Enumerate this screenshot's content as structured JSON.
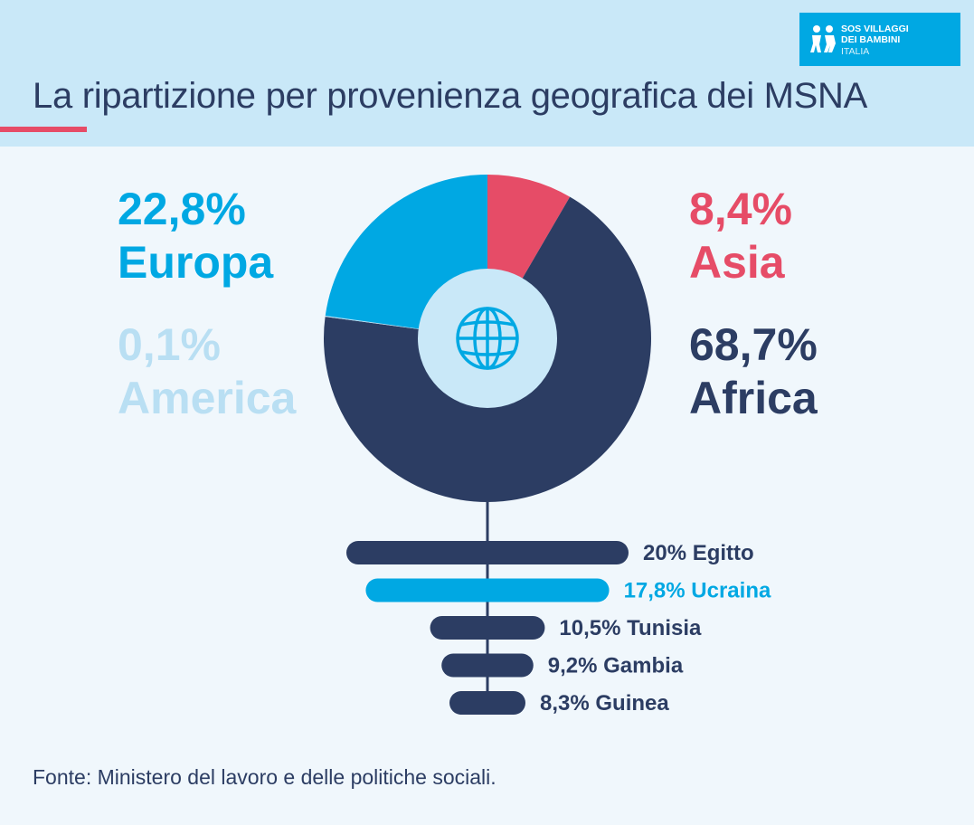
{
  "header": {
    "title": "La ripartizione per provenienza geografica dei MSNA",
    "logo": {
      "line1": "SOS VILLAGGI",
      "line2": "DEI BAMBINI",
      "line3": "ITALIA"
    }
  },
  "colors": {
    "europa": "#00a8e3",
    "america": "#b9dff3",
    "asia": "#e64c67",
    "africa": "#2c3d63",
    "center": "#c9e8f8",
    "header_bg": "#c9e8f8"
  },
  "chart_data": [
    {
      "type": "pie",
      "variant": "donut",
      "title": "La ripartizione per provenienza geografica dei MSNA",
      "slices": [
        {
          "label": "Asia",
          "value": 8.4,
          "pct_label": "8,4%",
          "color": "#e64c67"
        },
        {
          "label": "Africa",
          "value": 68.7,
          "pct_label": "68,7%",
          "color": "#2c3d63"
        },
        {
          "label": "America",
          "value": 0.1,
          "pct_label": "0,1%",
          "color": "#b9dff3"
        },
        {
          "label": "Europa",
          "value": 22.8,
          "pct_label": "22,8%",
          "color": "#00a8e3"
        }
      ],
      "center_icon": "globe-icon"
    },
    {
      "type": "bar",
      "orientation": "horizontal",
      "categories": [
        "Egitto",
        "Ucraina",
        "Tunisia",
        "Gambia",
        "Guinea"
      ],
      "values": [
        20,
        17.8,
        10.5,
        9.2,
        8.3
      ],
      "labels": [
        "20% Egitto",
        "17,8% Ucraina",
        "10,5% Tunisia",
        "9,2% Gambia",
        "8,3% Guinea"
      ],
      "colors": [
        "#2c3d63",
        "#00a8e3",
        "#2c3d63",
        "#2c3d63",
        "#2c3d63"
      ],
      "xlim": [
        0,
        20
      ]
    }
  ],
  "source": "Fonte: Ministero del lavoro e delle politiche sociali."
}
